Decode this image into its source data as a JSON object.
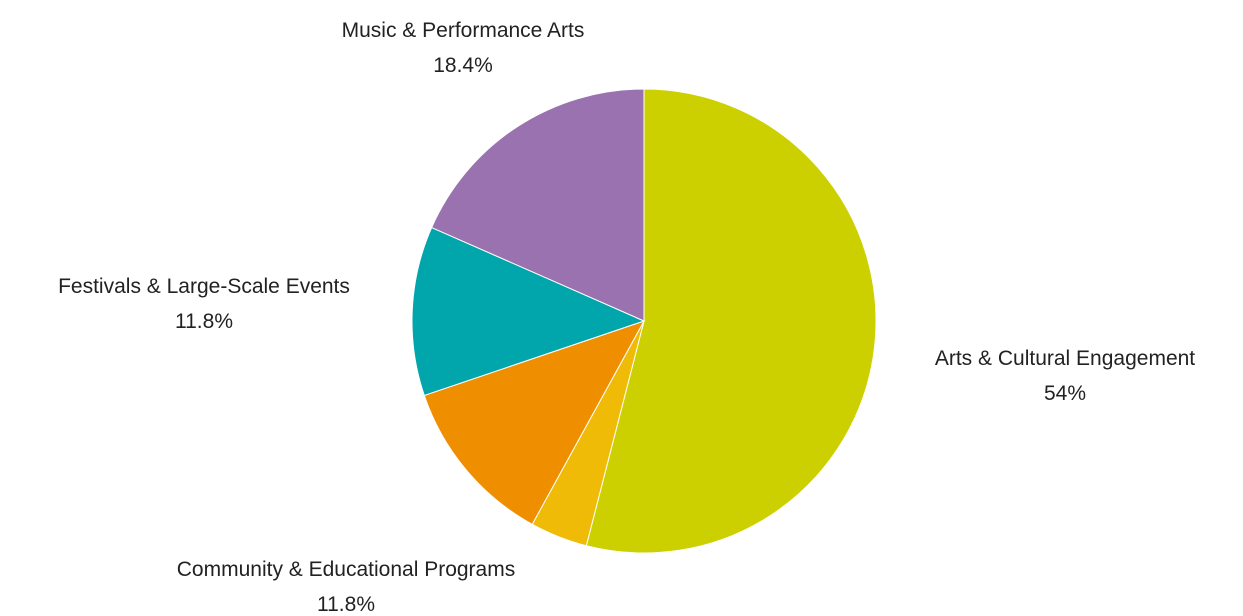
{
  "chart_data": {
    "type": "pie",
    "title": "",
    "slices": [
      {
        "label": "Arts & Cultural Engagement",
        "value": 54.0,
        "value_label": "54%",
        "color": "#cdd000",
        "labeled": true
      },
      {
        "label": "",
        "value": 4.0,
        "value_label": "",
        "color": "#efbb07",
        "labeled": false
      },
      {
        "label": "Community & Educational Programs",
        "value": 11.8,
        "value_label": "11.8%",
        "color": "#ef8f00",
        "labeled": true
      },
      {
        "label": "Festivals & Large-Scale Events",
        "value": 11.8,
        "value_label": "11.8%",
        "color": "#00a6ab",
        "labeled": true
      },
      {
        "label": "Music & Performance Arts",
        "value": 18.4,
        "value_label": "18.4%",
        "color": "#9b72b0",
        "labeled": true
      }
    ],
    "start_angle": "12 o'clock",
    "direction": "clockwise",
    "legend": "none",
    "labels_outside": true
  }
}
